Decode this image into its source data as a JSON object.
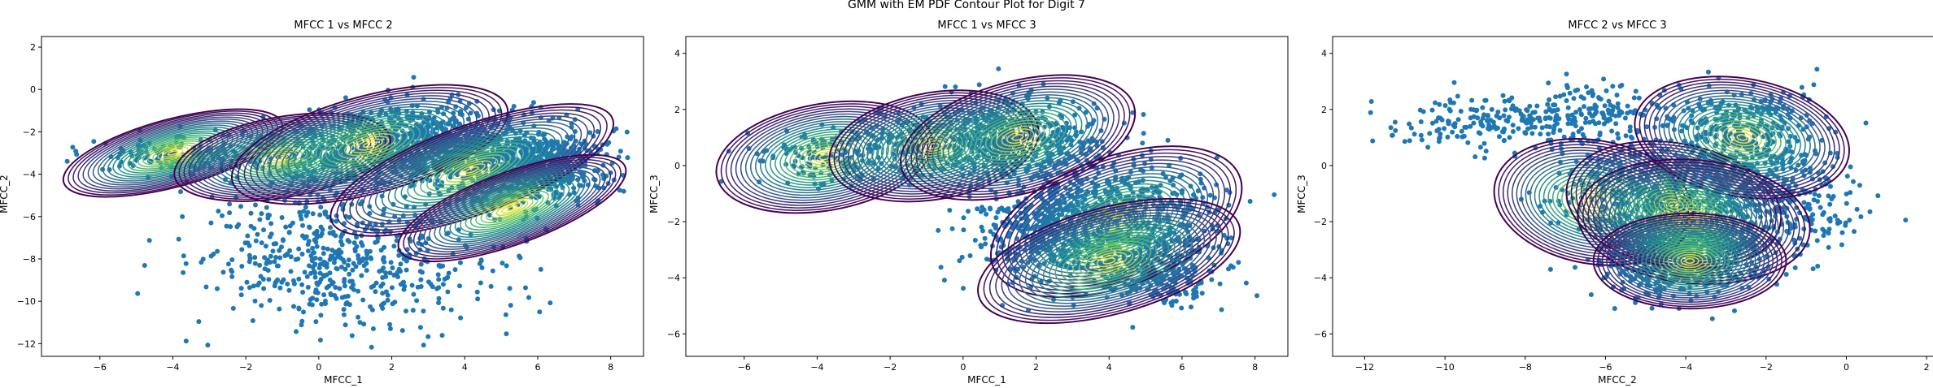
{
  "figure": {
    "title": "GMM with EM PDF Contour Plot for Digit 7"
  },
  "colors": {
    "scatter": "#1f77b4",
    "contour_low": "#440154",
    "contour_mid": "#21918c",
    "contour_high": "#fde725"
  },
  "chart_data": [
    {
      "type": "scatter",
      "overlay": "contour",
      "title": "MFCC 1 vs MFCC 2",
      "xlabel": "MFCC_1",
      "ylabel": "MFCC_2",
      "xlim": [
        -7.6,
        8.9
      ],
      "ylim": [
        -12.6,
        2.5
      ],
      "xticks": [
        -6,
        -4,
        -2,
        0,
        2,
        4,
        6,
        8
      ],
      "yticks": [
        -12,
        -10,
        -8,
        -6,
        -4,
        -2,
        0,
        2
      ],
      "clusters": [
        {
          "center": [
            2.5,
            -2.4
          ],
          "spread": [
            1.4,
            0.9
          ],
          "n": 600
        },
        {
          "center": [
            4.5,
            -3.3
          ],
          "spread": [
            1.3,
            0.9
          ],
          "n": 550
        },
        {
          "center": [
            6.3,
            -3.6
          ],
          "spread": [
            0.8,
            0.8
          ],
          "n": 450
        },
        {
          "center": [
            -3.8,
            -3.1
          ],
          "spread": [
            1.2,
            0.5
          ],
          "n": 160
        },
        {
          "center": [
            -0.4,
            -3.2
          ],
          "spread": [
            1.1,
            0.7
          ],
          "n": 180
        },
        {
          "center": [
            0.8,
            -8.4
          ],
          "spread": [
            2.2,
            1.4
          ],
          "n": 450
        },
        {
          "center": [
            -0.2,
            -6.3
          ],
          "spread": [
            1.6,
            0.9
          ],
          "n": 120
        }
      ],
      "components": [
        {
          "center": [
            -4.0,
            -3.0
          ],
          "axes": [
            3.1,
            1.6
          ],
          "angle": -15
        },
        {
          "center": [
            -1.0,
            -3.2
          ],
          "axes": [
            3.0,
            1.9
          ],
          "angle": -10
        },
        {
          "center": [
            1.4,
            -2.6
          ],
          "axes": [
            3.9,
            2.3
          ],
          "angle": -15
        },
        {
          "center": [
            4.2,
            -3.8
          ],
          "axes": [
            4.1,
            2.1
          ],
          "angle": -20
        },
        {
          "center": [
            5.3,
            -5.6
          ],
          "axes": [
            3.3,
            1.7
          ],
          "angle": -20
        }
      ]
    },
    {
      "type": "scatter",
      "overlay": "contour",
      "title": "MFCC 1 vs MFCC 3",
      "xlabel": "MFCC_1",
      "ylabel": "MFCC_3",
      "xlim": [
        -7.6,
        8.9
      ],
      "ylim": [
        -6.8,
        4.6
      ],
      "xticks": [
        -6,
        -4,
        -2,
        0,
        2,
        4,
        6,
        8
      ],
      "yticks": [
        -6,
        -4,
        -2,
        0,
        2,
        4
      ],
      "clusters": [
        {
          "center": [
            1.5,
            1.0
          ],
          "spread": [
            1.2,
            0.7
          ],
          "n": 450
        },
        {
          "center": [
            -0.5,
            0.7
          ],
          "spread": [
            1.1,
            0.6
          ],
          "n": 250
        },
        {
          "center": [
            -3.6,
            0.3
          ],
          "spread": [
            1.1,
            0.5
          ],
          "n": 160
        },
        {
          "center": [
            4.2,
            -1.8
          ],
          "spread": [
            1.4,
            1.0
          ],
          "n": 600
        },
        {
          "center": [
            2.5,
            -2.5
          ],
          "spread": [
            1.3,
            0.9
          ],
          "n": 450
        },
        {
          "center": [
            5.5,
            -3.8
          ],
          "spread": [
            0.9,
            0.7
          ],
          "n": 250
        }
      ],
      "components": [
        {
          "center": [
            -3.8,
            0.3
          ],
          "axes": [
            3.0,
            1.9
          ],
          "angle": -10
        },
        {
          "center": [
            -0.8,
            0.7
          ],
          "axes": [
            2.9,
            1.9
          ],
          "angle": -10
        },
        {
          "center": [
            1.5,
            1.0
          ],
          "axes": [
            3.3,
            2.0
          ],
          "angle": -15
        },
        {
          "center": [
            4.2,
            -2.0
          ],
          "axes": [
            3.6,
            2.3
          ],
          "angle": -20
        },
        {
          "center": [
            4.0,
            -3.4
          ],
          "axes": [
            3.7,
            1.9
          ],
          "angle": -15
        }
      ]
    },
    {
      "type": "scatter",
      "overlay": "contour",
      "title": "MFCC 2 vs MFCC 3",
      "xlabel": "MFCC_2",
      "ylabel": "MFCC_3",
      "xlim": [
        -12.8,
        2.2
      ],
      "ylim": [
        -6.8,
        4.6
      ],
      "xticks": [
        -12,
        -10,
        -8,
        -6,
        -4,
        -2,
        0,
        2
      ],
      "yticks": [
        -6,
        -4,
        -2,
        0,
        2,
        4
      ],
      "clusters": [
        {
          "center": [
            -8.5,
            1.5
          ],
          "spread": [
            1.6,
            0.5
          ],
          "n": 220
        },
        {
          "center": [
            -6.3,
            2.0
          ],
          "spread": [
            0.8,
            0.5
          ],
          "n": 120
        },
        {
          "center": [
            -2.6,
            1.0
          ],
          "spread": [
            0.9,
            0.9
          ],
          "n": 450
        },
        {
          "center": [
            -3.8,
            -2.0
          ],
          "spread": [
            1.1,
            1.1
          ],
          "n": 650
        },
        {
          "center": [
            -4.3,
            -3.4
          ],
          "spread": [
            1.0,
            0.7
          ],
          "n": 350
        },
        {
          "center": [
            -5.6,
            -0.8
          ],
          "spread": [
            1.0,
            0.8
          ],
          "n": 200
        },
        {
          "center": [
            -1.0,
            -1.4
          ],
          "spread": [
            0.7,
            1.0
          ],
          "n": 150
        }
      ],
      "components": [
        {
          "center": [
            -6.3,
            -1.3
          ],
          "axes": [
            2.5,
            2.2
          ],
          "angle": 10
        },
        {
          "center": [
            -4.3,
            -1.4
          ],
          "axes": [
            2.7,
            2.2
          ],
          "angle": 10
        },
        {
          "center": [
            -2.6,
            1.0
          ],
          "axes": [
            2.7,
            2.1
          ],
          "angle": 10
        },
        {
          "center": [
            -3.8,
            -2.0
          ],
          "axes": [
            2.9,
            2.2
          ],
          "angle": 5
        },
        {
          "center": [
            -3.9,
            -3.4
          ],
          "axes": [
            2.4,
            1.7
          ],
          "angle": 0
        }
      ]
    }
  ]
}
